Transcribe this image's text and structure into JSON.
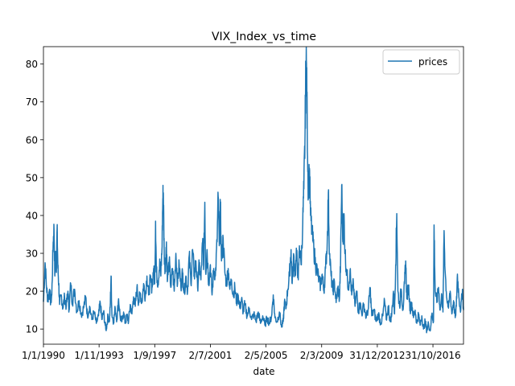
{
  "chart_data": {
    "type": "line",
    "title": "VIX_Index_vs_time",
    "xlabel": "date",
    "ylabel": "",
    "x_tick_labels": [
      "1/1/1990",
      "1/11/1993",
      "1/9/1997",
      "2/7/2001",
      "2/5/2005",
      "2/3/2009",
      "31/12/2012",
      "31/10/2016"
    ],
    "x_tick_index": [
      0,
      1000,
      2000,
      3000,
      4000,
      5000,
      6000,
      7000
    ],
    "x_count": 7550,
    "ylim": [
      6,
      84.6
    ],
    "y_ticks": [
      10,
      20,
      30,
      40,
      50,
      60,
      70,
      80
    ],
    "grid": false,
    "legend": {
      "position": "top-right",
      "entries": [
        "prices"
      ]
    },
    "series_color": "#1f77b4",
    "series": [
      {
        "name": "prices",
        "points": [
          [
            0,
            17.2
          ],
          [
            30,
            27.5
          ],
          [
            55,
            21.0
          ],
          [
            80,
            17.5
          ],
          [
            110,
            20.5
          ],
          [
            130,
            17.0
          ],
          [
            150,
            19.0
          ],
          [
            175,
            33.0
          ],
          [
            190,
            36.5
          ],
          [
            205,
            24.0
          ],
          [
            215,
            30.0
          ],
          [
            230,
            25.0
          ],
          [
            245,
            36.5
          ],
          [
            260,
            26.0
          ],
          [
            275,
            22.0
          ],
          [
            290,
            16.5
          ],
          [
            320,
            19.0
          ],
          [
            350,
            15.5
          ],
          [
            380,
            18.5
          ],
          [
            410,
            16.0
          ],
          [
            440,
            20.0
          ],
          [
            460,
            15.0
          ],
          [
            490,
            22.0
          ],
          [
            520,
            17.0
          ],
          [
            560,
            20.5
          ],
          [
            600,
            14.5
          ],
          [
            640,
            17.5
          ],
          [
            680,
            13.8
          ],
          [
            720,
            15.5
          ],
          [
            760,
            18.5
          ],
          [
            790,
            13.5
          ],
          [
            830,
            16.0
          ],
          [
            870,
            12.5
          ],
          [
            910,
            14.5
          ],
          [
            950,
            11.5
          ],
          [
            990,
            13.5
          ],
          [
            1020,
            17.0
          ],
          [
            1050,
            12.5
          ],
          [
            1080,
            14.5
          ],
          [
            1110,
            11.0
          ],
          [
            1130,
            10.0
          ],
          [
            1160,
            13.5
          ],
          [
            1185,
            12.0
          ],
          [
            1200,
            16.0
          ],
          [
            1215,
            24.0
          ],
          [
            1230,
            14.0
          ],
          [
            1260,
            12.0
          ],
          [
            1290,
            15.5
          ],
          [
            1320,
            12.5
          ],
          [
            1350,
            18.0
          ],
          [
            1380,
            13.0
          ],
          [
            1410,
            12.0
          ],
          [
            1440,
            14.5
          ],
          [
            1470,
            11.5
          ],
          [
            1500,
            13.5
          ],
          [
            1530,
            12.0
          ],
          [
            1560,
            16.5
          ],
          [
            1590,
            14.0
          ],
          [
            1620,
            18.5
          ],
          [
            1650,
            16.0
          ],
          [
            1680,
            21.0
          ],
          [
            1710,
            17.0
          ],
          [
            1740,
            19.5
          ],
          [
            1770,
            17.0
          ],
          [
            1800,
            22.0
          ],
          [
            1830,
            18.5
          ],
          [
            1860,
            24.0
          ],
          [
            1890,
            19.0
          ],
          [
            1920,
            23.0
          ],
          [
            1950,
            21.0
          ],
          [
            1980,
            26.0
          ],
          [
            2000,
            22.0
          ],
          [
            2015,
            38.5
          ],
          [
            2030,
            25.0
          ],
          [
            2060,
            22.0
          ],
          [
            2090,
            28.5
          ],
          [
            2110,
            24.0
          ],
          [
            2130,
            31.0
          ],
          [
            2145,
            44.5
          ],
          [
            2155,
            46.0
          ],
          [
            2170,
            30.0
          ],
          [
            2190,
            25.0
          ],
          [
            2210,
            33.0
          ],
          [
            2230,
            23.0
          ],
          [
            2260,
            28.0
          ],
          [
            2290,
            21.0
          ],
          [
            2320,
            26.0
          ],
          [
            2350,
            20.0
          ],
          [
            2380,
            30.0
          ],
          [
            2410,
            22.0
          ],
          [
            2440,
            27.0
          ],
          [
            2470,
            21.0
          ],
          [
            2500,
            25.0
          ],
          [
            2530,
            19.5
          ],
          [
            2560,
            24.0
          ],
          [
            2590,
            20.0
          ],
          [
            2620,
            29.5
          ],
          [
            2650,
            22.0
          ],
          [
            2680,
            31.0
          ],
          [
            2710,
            24.0
          ],
          [
            2740,
            28.0
          ],
          [
            2770,
            21.0
          ],
          [
            2800,
            27.0
          ],
          [
            2830,
            23.0
          ],
          [
            2860,
            33.0
          ],
          [
            2880,
            27.0
          ],
          [
            2900,
            43.5
          ],
          [
            2915,
            25.0
          ],
          [
            2940,
            31.0
          ],
          [
            2970,
            22.0
          ],
          [
            3000,
            27.0
          ],
          [
            3030,
            19.0
          ],
          [
            3060,
            26.0
          ],
          [
            3090,
            24.0
          ],
          [
            3120,
            33.0
          ],
          [
            3140,
            45.0
          ],
          [
            3160,
            32.0
          ],
          [
            3180,
            42.5
          ],
          [
            3200,
            28.0
          ],
          [
            3230,
            34.0
          ],
          [
            3260,
            25.0
          ],
          [
            3290,
            22.0
          ],
          [
            3320,
            26.0
          ],
          [
            3350,
            20.5
          ],
          [
            3380,
            23.0
          ],
          [
            3410,
            19.0
          ],
          [
            3440,
            21.0
          ],
          [
            3470,
            17.0
          ],
          [
            3500,
            19.0
          ],
          [
            3530,
            15.5
          ],
          [
            3560,
            18.0
          ],
          [
            3590,
            14.5
          ],
          [
            3620,
            16.5
          ],
          [
            3660,
            13.5
          ],
          [
            3700,
            15.5
          ],
          [
            3740,
            12.5
          ],
          [
            3780,
            14.0
          ],
          [
            3820,
            12.0
          ],
          [
            3860,
            14.5
          ],
          [
            3900,
            11.5
          ],
          [
            3940,
            13.5
          ],
          [
            3980,
            11.0
          ],
          [
            4020,
            13.0
          ],
          [
            4060,
            11.5
          ],
          [
            4100,
            13.5
          ],
          [
            4130,
            19.0
          ],
          [
            4160,
            13.0
          ],
          [
            4200,
            12.0
          ],
          [
            4240,
            14.5
          ],
          [
            4280,
            10.5
          ],
          [
            4310,
            12.0
          ],
          [
            4330,
            17.0
          ],
          [
            4360,
            15.5
          ],
          [
            4390,
            20.5
          ],
          [
            4420,
            24.0
          ],
          [
            4450,
            31.0
          ],
          [
            4470,
            22.0
          ],
          [
            4500,
            29.5
          ],
          [
            4520,
            24.0
          ],
          [
            4550,
            30.0
          ],
          [
            4580,
            23.0
          ],
          [
            4600,
            32.0
          ],
          [
            4630,
            27.0
          ],
          [
            4660,
            38.0
          ],
          [
            4680,
            47.0
          ],
          [
            4700,
            60.0
          ],
          [
            4715,
            78.0
          ],
          [
            4725,
            81.0
          ],
          [
            4740,
            65.0
          ],
          [
            4760,
            45.0
          ],
          [
            4780,
            52.5
          ],
          [
            4800,
            40.0
          ],
          [
            4830,
            35.0
          ],
          [
            4860,
            31.0
          ],
          [
            4890,
            27.0
          ],
          [
            4920,
            25.5
          ],
          [
            4950,
            23.0
          ],
          [
            4980,
            21.5
          ],
          [
            5010,
            24.5
          ],
          [
            5040,
            20.0
          ],
          [
            5070,
            26.0
          ],
          [
            5100,
            33.0
          ],
          [
            5120,
            46.0
          ],
          [
            5140,
            30.0
          ],
          [
            5170,
            24.0
          ],
          [
            5200,
            20.0
          ],
          [
            5230,
            22.5
          ],
          [
            5260,
            17.0
          ],
          [
            5290,
            21.0
          ],
          [
            5320,
            18.0
          ],
          [
            5340,
            28.0
          ],
          [
            5360,
            48.0
          ],
          [
            5380,
            33.0
          ],
          [
            5400,
            40.5
          ],
          [
            5420,
            30.0
          ],
          [
            5450,
            25.0
          ],
          [
            5480,
            21.0
          ],
          [
            5510,
            25.5
          ],
          [
            5540,
            19.0
          ],
          [
            5570,
            22.0
          ],
          [
            5600,
            16.0
          ],
          [
            5630,
            20.0
          ],
          [
            5660,
            14.5
          ],
          [
            5690,
            17.0
          ],
          [
            5720,
            14.0
          ],
          [
            5760,
            16.5
          ],
          [
            5800,
            13.0
          ],
          [
            5840,
            15.5
          ],
          [
            5870,
            21.0
          ],
          [
            5900,
            13.5
          ],
          [
            5940,
            15.0
          ],
          [
            5980,
            12.0
          ],
          [
            6020,
            14.0
          ],
          [
            6060,
            11.5
          ],
          [
            6100,
            13.5
          ],
          [
            6130,
            17.5
          ],
          [
            6160,
            12.5
          ],
          [
            6200,
            16.0
          ],
          [
            6230,
            12.0
          ],
          [
            6260,
            14.0
          ],
          [
            6290,
            20.0
          ],
          [
            6310,
            14.0
          ],
          [
            6330,
            27.0
          ],
          [
            6350,
            40.5
          ],
          [
            6370,
            20.0
          ],
          [
            6400,
            16.0
          ],
          [
            6430,
            20.5
          ],
          [
            6460,
            15.0
          ],
          [
            6490,
            22.0
          ],
          [
            6510,
            28.0
          ],
          [
            6530,
            18.0
          ],
          [
            6560,
            21.5
          ],
          [
            6590,
            15.0
          ],
          [
            6620,
            17.0
          ],
          [
            6650,
            13.0
          ],
          [
            6680,
            15.0
          ],
          [
            6710,
            11.5
          ],
          [
            6740,
            14.0
          ],
          [
            6770,
            11.0
          ],
          [
            6800,
            13.5
          ],
          [
            6830,
            10.0
          ],
          [
            6860,
            12.0
          ],
          [
            6890,
            9.5
          ],
          [
            6920,
            11.5
          ],
          [
            6950,
            9.5
          ],
          [
            6980,
            14.0
          ],
          [
            7010,
            12.0
          ],
          [
            7020,
            37.5
          ],
          [
            7040,
            20.0
          ],
          [
            7070,
            17.0
          ],
          [
            7100,
            21.0
          ],
          [
            7130,
            15.0
          ],
          [
            7160,
            19.0
          ],
          [
            7180,
            14.5
          ],
          [
            7200,
            36.0
          ],
          [
            7220,
            25.0
          ],
          [
            7250,
            18.0
          ],
          [
            7280,
            15.5
          ],
          [
            7310,
            20.0
          ],
          [
            7340,
            14.0
          ],
          [
            7370,
            17.5
          ],
          [
            7400,
            13.0
          ],
          [
            7420,
            16.0
          ],
          [
            7440,
            24.5
          ],
          [
            7470,
            18.0
          ],
          [
            7500,
            15.0
          ],
          [
            7530,
            20.5
          ],
          [
            7549,
            15.0
          ]
        ]
      }
    ]
  }
}
